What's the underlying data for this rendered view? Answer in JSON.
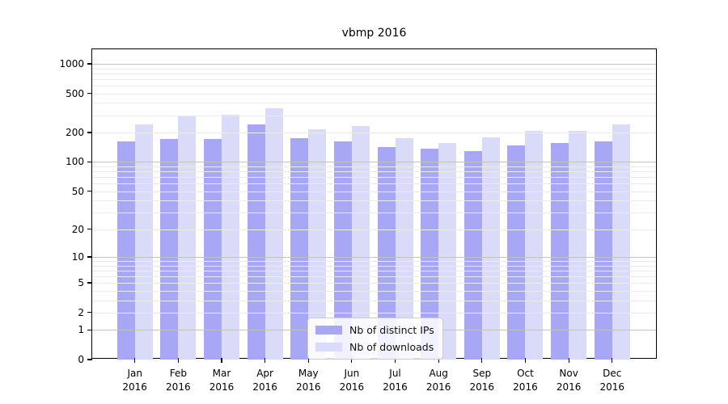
{
  "chart_data": {
    "type": "bar",
    "title": "vbmp 2016",
    "categories": [
      "Jan 2016",
      "Feb 2016",
      "Mar 2016",
      "Apr 2016",
      "May 2016",
      "Jun 2016",
      "Jul 2016",
      "Aug 2016",
      "Sep 2016",
      "Oct 2016",
      "Nov 2016",
      "Dec 2016"
    ],
    "series": [
      {
        "name": "Nb of distinct IPs",
        "color": "#a7a7f6",
        "values": [
          163,
          172,
          172,
          242,
          174,
          163,
          143,
          137,
          130,
          148,
          155,
          163
        ]
      },
      {
        "name": "Nb of downloads",
        "color": "#dadaf9",
        "values": [
          241,
          300,
          304,
          350,
          217,
          233,
          176,
          157,
          179,
          206,
          208,
          242
        ]
      }
    ],
    "xlabel": "",
    "ylabel": "",
    "yscale": "log1p",
    "y_ticks": [
      0,
      1,
      2,
      5,
      10,
      20,
      50,
      100,
      200,
      500,
      1000
    ],
    "y_axis_top_value": 1404,
    "grid": "horizontal major+minor, drawn over bars",
    "legend_position": "inside bottom-center"
  },
  "colors": {
    "background": "#ffffff",
    "axis": "#000000",
    "grid_major": "#c2c2c2",
    "grid_minor": "#ebebeb",
    "bar_distinct_ips": "#a7a7f6",
    "bar_downloads": "#dadaf9",
    "legend_border": "#cccccc"
  }
}
